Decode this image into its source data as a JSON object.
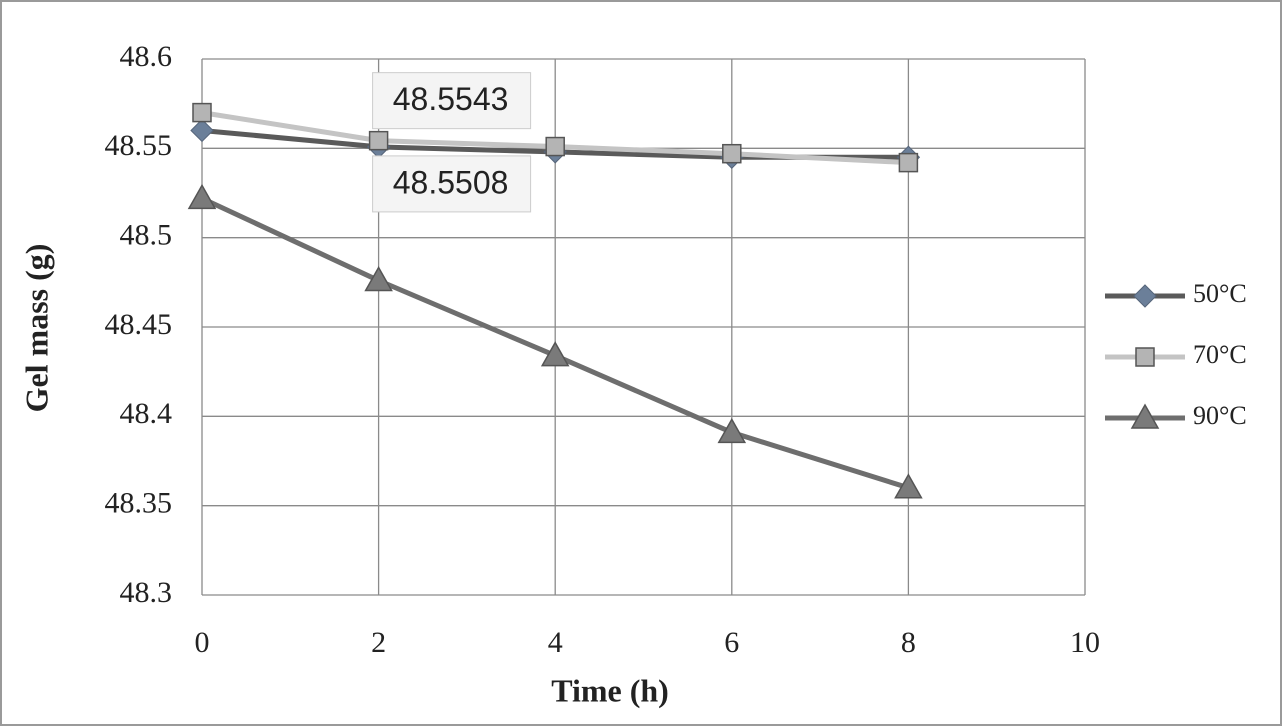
{
  "chart_data": {
    "type": "line",
    "xlabel": "Time (h)",
    "ylabel": "Gel mass (g)",
    "xlim": [
      0,
      10
    ],
    "xticks": [
      0,
      2,
      4,
      6,
      8,
      10
    ],
    "ylim": [
      48.3,
      48.6
    ],
    "yticks": [
      48.3,
      48.35,
      48.4,
      48.45,
      48.5,
      48.55,
      48.6
    ],
    "grid": true,
    "legend": "right",
    "x": [
      0,
      2,
      4,
      6,
      8
    ],
    "series": [
      {
        "name": "50°C",
        "color": "#5a5a5a",
        "marker": "diamond",
        "marker_color": "#6b7f99",
        "values": [
          48.56,
          48.5508,
          48.548,
          48.545,
          48.545
        ],
        "value_labels": [
          null,
          "48.5508",
          null,
          null,
          null
        ]
      },
      {
        "name": "70°C",
        "color": "#c4c4c4",
        "marker": "square",
        "marker_color": "#b4b4b4",
        "values": [
          48.57,
          48.5543,
          48.551,
          48.547,
          48.542
        ],
        "value_labels": [
          null,
          "48.5543",
          null,
          null,
          null
        ]
      },
      {
        "name": "90°C",
        "color": "#6e6e6e",
        "marker": "triangle",
        "marker_color": "#7a7a7a",
        "values": [
          48.522,
          48.476,
          48.434,
          48.391,
          48.36
        ]
      }
    ]
  }
}
